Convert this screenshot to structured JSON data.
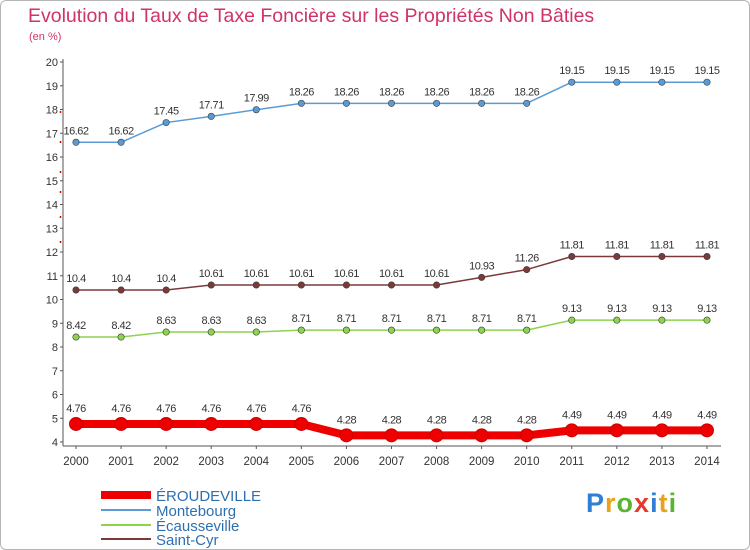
{
  "title": "Evolution du Taux de Taxe Foncière sur les Propriétés Non Bâties",
  "subtitle": "(en %)",
  "logo": {
    "letters": [
      "P",
      "r",
      "o",
      "x",
      "i",
      "t",
      "i"
    ],
    "colors": [
      "#2f7fd6",
      "#e8a21b",
      "#5cb531",
      "#e23a2d",
      "#2f7fd6",
      "#e8a21b",
      "#5cb531"
    ]
  },
  "chart_data": {
    "type": "line",
    "title": "Evolution du Taux de Taxe Foncière sur les Propriétés Non Bâties",
    "ylabel": "(en %)",
    "xlabel": "",
    "ylim": [
      4,
      20
    ],
    "yticks": [
      "4",
      "5",
      "6",
      "7",
      "8",
      "9",
      "10",
      "11",
      "12",
      "13",
      "14",
      "15",
      "16",
      "17",
      "18",
      "19",
      "20"
    ],
    "grid": false,
    "legend_position": "bottom-left",
    "categories": [
      "2000",
      "2001",
      "2002",
      "2003",
      "2004",
      "2005",
      "2006",
      "2007",
      "2008",
      "2009",
      "2010",
      "2011",
      "2012",
      "2013",
      "2014"
    ],
    "series": [
      {
        "name": "ÉROUDEVILLE",
        "color": "#ee0000",
        "values": [
          4.76,
          4.76,
          4.76,
          4.76,
          4.76,
          4.76,
          4.28,
          4.28,
          4.28,
          4.28,
          4.28,
          4.49,
          4.49,
          4.49,
          4.49
        ],
        "labels": [
          "4.76",
          "4.76",
          "4.76",
          "4.76",
          "4.76",
          "4.76",
          "4.28",
          "4.28",
          "4.28",
          "4.28",
          "4.28",
          "4.49",
          "4.49",
          "4.49",
          "4.49"
        ]
      },
      {
        "name": "Montebourg",
        "color": "#5b9bd5",
        "values": [
          16.62,
          16.62,
          17.45,
          17.71,
          17.99,
          18.26,
          18.26,
          18.26,
          18.26,
          18.26,
          18.26,
          19.15,
          19.15,
          19.15,
          19.15
        ],
        "labels": [
          "16.62",
          "16.62",
          "17.45",
          "17.71",
          "17.99",
          "18.26",
          "18.26",
          "18.26",
          "18.26",
          "18.26",
          "18.26",
          "19.15",
          "19.15",
          "19.15",
          "19.15"
        ]
      },
      {
        "name": "Écausseville",
        "color": "#8cd34f",
        "values": [
          8.42,
          8.42,
          8.63,
          8.63,
          8.63,
          8.71,
          8.71,
          8.71,
          8.71,
          8.71,
          8.71,
          9.13,
          9.13,
          9.13,
          9.13
        ],
        "labels": [
          "8.42",
          "8.42",
          "8.63",
          "8.63",
          "8.63",
          "8.71",
          "8.71",
          "8.71",
          "8.71",
          "8.71",
          "8.71",
          "9.13",
          "9.13",
          "9.13",
          "9.13"
        ]
      },
      {
        "name": "Saint-Cyr",
        "color": "#7b3a3a",
        "values": [
          10.4,
          10.4,
          10.4,
          10.61,
          10.61,
          10.61,
          10.61,
          10.61,
          10.61,
          10.93,
          11.26,
          11.81,
          11.81,
          11.81,
          11.81
        ],
        "labels": [
          "10.4",
          "10.4",
          "10.4",
          "10.61",
          "10.61",
          "10.61",
          "10.61",
          "10.61",
          "10.61",
          "10.93",
          "11.26",
          "11.81",
          "11.81",
          "11.81",
          "11.81"
        ]
      }
    ]
  }
}
